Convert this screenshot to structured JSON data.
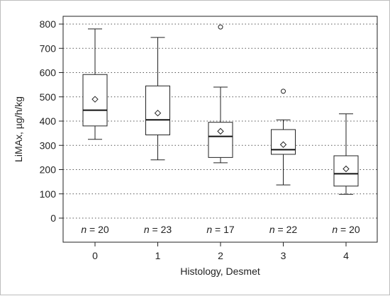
{
  "chart_data": {
    "type": "box",
    "title": "",
    "xlabel": "Histology, Desmet",
    "ylabel": "LiMAx, µg/h/kg",
    "ylim": [
      0,
      800
    ],
    "yticks": [
      0,
      100,
      200,
      300,
      400,
      500,
      600,
      700,
      800
    ],
    "grid": "horizontal dotted",
    "categories": [
      "0",
      "1",
      "2",
      "3",
      "4"
    ],
    "n_labels": [
      "n = 20",
      "n = 23",
      "n = 17",
      "n = 22",
      "n = 20"
    ],
    "boxes": [
      {
        "category": "0",
        "whisker_low": 325,
        "q1": 380,
        "median": 445,
        "q3": 592,
        "whisker_high": 780,
        "mean": 490,
        "outliers": []
      },
      {
        "category": "1",
        "whisker_low": 240,
        "q1": 343,
        "median": 405,
        "q3": 545,
        "whisker_high": 745,
        "mean": 433,
        "outliers": []
      },
      {
        "category": "2",
        "whisker_low": 228,
        "q1": 250,
        "median": 337,
        "q3": 395,
        "whisker_high": 540,
        "mean": 358,
        "outliers": [
          788
        ]
      },
      {
        "category": "3",
        "whisker_low": 137,
        "q1": 263,
        "median": 282,
        "q3": 365,
        "whisker_high": 405,
        "mean": 303,
        "outliers": [
          523
        ]
      },
      {
        "category": "4",
        "whisker_low": 98,
        "q1": 132,
        "median": 183,
        "q3": 257,
        "whisker_high": 430,
        "mean": 203,
        "outliers": []
      }
    ]
  }
}
